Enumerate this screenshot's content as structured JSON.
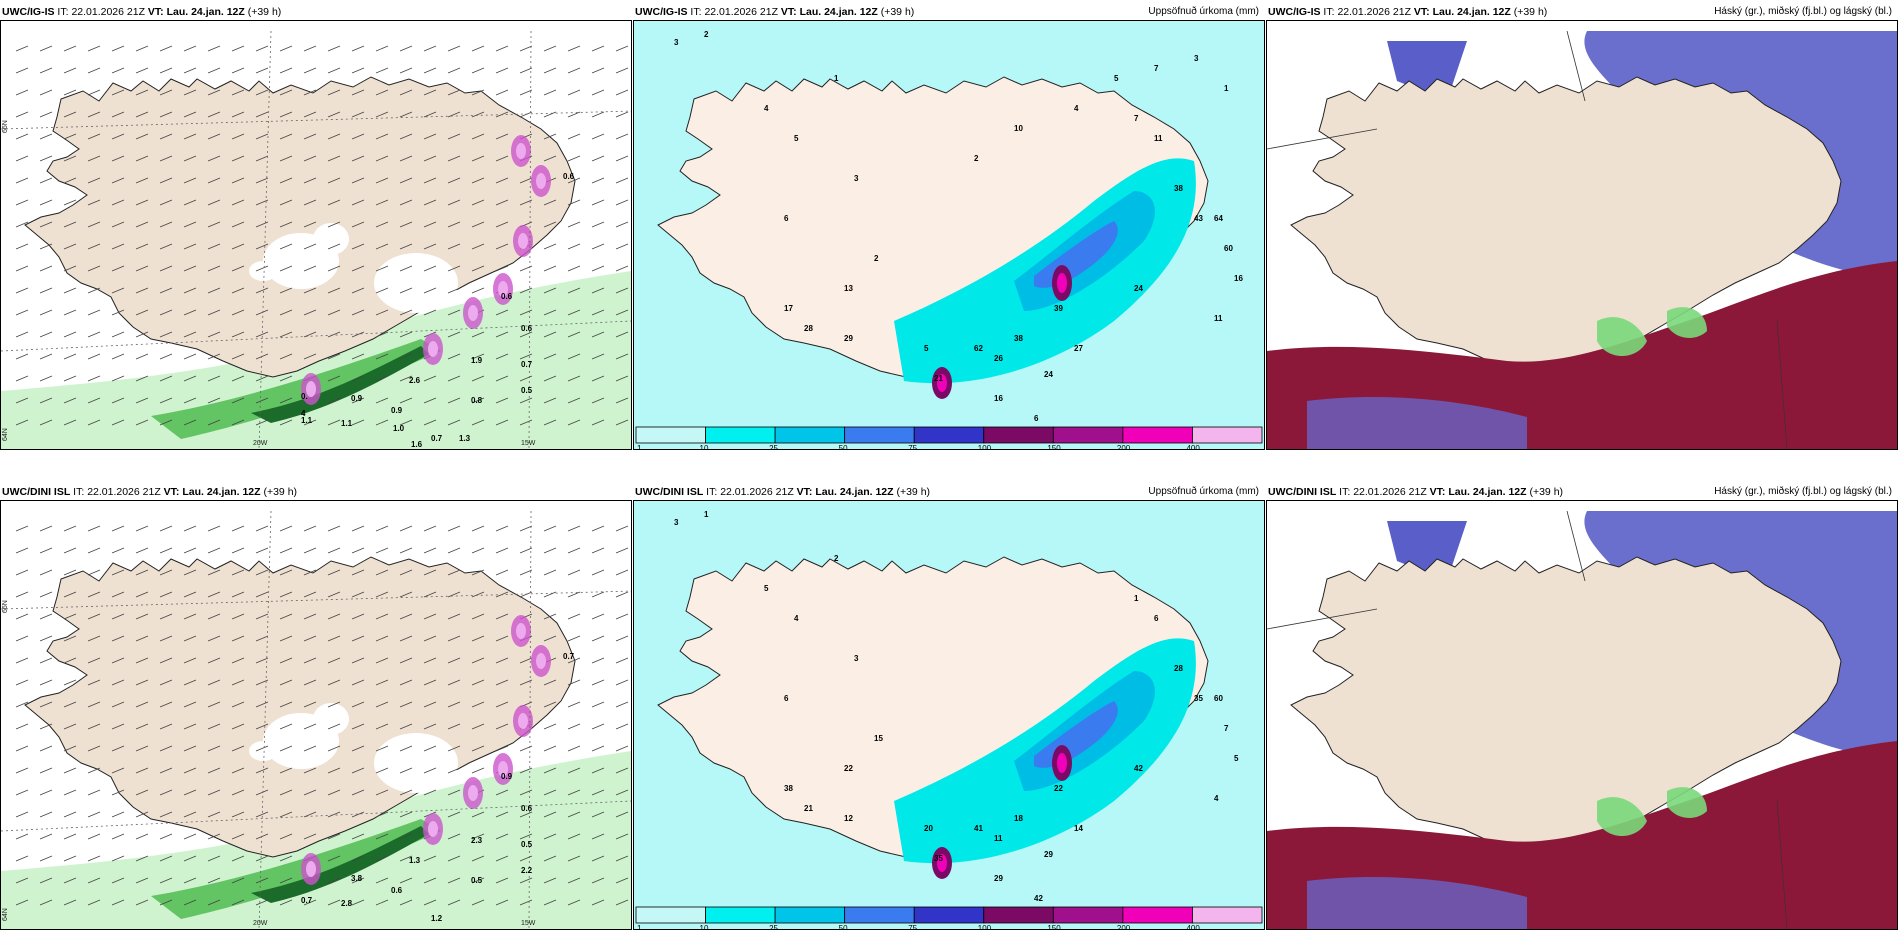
{
  "panels": [
    {
      "model": "UWC/IG-IS",
      "it_label": "IT:",
      "it": "22.01.2026 21Z",
      "vt_label": "VT:",
      "vt": "Lau. 24.jan. 12Z",
      "lead": "(+39 h)",
      "right": "",
      "kind": "wind",
      "labels": [
        "0.6",
        "0.6",
        "0.6",
        "0.7",
        "1.9",
        "2.6",
        "0.5",
        "0.9",
        "0.9",
        "0.8",
        "1.1",
        "1.1",
        "0.7",
        "1.3",
        "1.6",
        "0.",
        "1.0",
        "4"
      ],
      "lat_labels": [
        "66N",
        "65N",
        "64N"
      ],
      "lon_labels": [
        "20W",
        "15W"
      ]
    },
    {
      "model": "UWC/IG-IS",
      "it_label": "IT:",
      "it": "22.01.2026 21Z",
      "vt_label": "VT:",
      "vt": "Lau. 24.jan. 12Z",
      "lead": "(+39 h)",
      "right": "Uppsöfnuð úrkoma (mm)",
      "kind": "precip",
      "labels": [
        "2",
        "3",
        "1",
        "4",
        "5",
        "6",
        "3",
        "2",
        "13",
        "28",
        "29",
        "17",
        "21",
        "62",
        "38",
        "16",
        "6",
        "5",
        "26",
        "27",
        "39",
        "24",
        "24",
        "43",
        "38",
        "64",
        "60",
        "16",
        "11",
        "11",
        "7",
        "10",
        "2",
        "4",
        "5",
        "7",
        "3",
        "1"
      ]
    },
    {
      "model": "UWC/IG-IS",
      "it_label": "IT:",
      "it": "22.01.2026 21Z",
      "vt_label": "VT:",
      "vt": "Lau. 24.jan. 12Z",
      "lead": "(+39 h)",
      "right": "Háský (gr.), miðský (fj.bl.) og lágský (bl.)",
      "kind": "cloud"
    },
    {
      "model": "UWC/DINI ISL",
      "it_label": "IT:",
      "it": "22.01.2026 21Z",
      "vt_label": "VT:",
      "vt": "Lau. 24.jan. 12Z",
      "lead": "(+39 h)",
      "right": "",
      "kind": "wind",
      "labels": [
        "0.7",
        "0.9",
        "0.6",
        "0.5",
        "2.3",
        "1.3",
        "2.2",
        "3.8",
        "0.6",
        "0.5",
        "2.8",
        "0.7",
        "1.2"
      ],
      "lat_labels": [
        "66N",
        "65N",
        "64N"
      ],
      "lon_labels": [
        "20W",
        "15W"
      ]
    },
    {
      "model": "UWC/DINI ISL",
      "it_label": "IT:",
      "it": "22.01.2026 21Z",
      "vt_label": "VT:",
      "vt": "Lau. 24.jan. 12Z",
      "lead": "(+39 h)",
      "right": "Uppsöfnuð úrkoma (mm)",
      "kind": "precip",
      "labels": [
        "1",
        "3",
        "2",
        "5",
        "4",
        "6",
        "3",
        "15",
        "22",
        "21",
        "12",
        "38",
        "35",
        "41",
        "18",
        "29",
        "42",
        "20",
        "11",
        "14",
        "22",
        "29",
        "42",
        "35",
        "28",
        "60",
        "7",
        "5",
        "4",
        "6",
        "1"
      ]
    },
    {
      "model": "UWC/DINI ISL",
      "it_label": "IT:",
      "it": "22.01.2026 21Z",
      "vt_label": "VT:",
      "vt": "Lau. 24.jan. 12Z",
      "lead": "(+39 h)",
      "right": "Háský (gr.), miðský (fj.bl.) og lágský (bl.)",
      "kind": "cloud"
    }
  ],
  "colorbar": {
    "ticks": [
      "1",
      "10",
      "25",
      "50",
      "75",
      "100",
      "150",
      "200",
      "400"
    ],
    "colors": [
      "#c6f7f7",
      "#00f0f0",
      "#00c4e8",
      "#3a7bf0",
      "#3234c8",
      "#7a0a64",
      "#a0108c",
      "#f000b8",
      "#f4b4ee"
    ]
  },
  "colors": {
    "land": "#efe1d2",
    "precip_land": "#fbefe5",
    "sea_precip": "#b6f7f7",
    "cloud_high": "#8b1838",
    "cloud_mid": "#5a5ec8",
    "green": "#7ad87a"
  }
}
